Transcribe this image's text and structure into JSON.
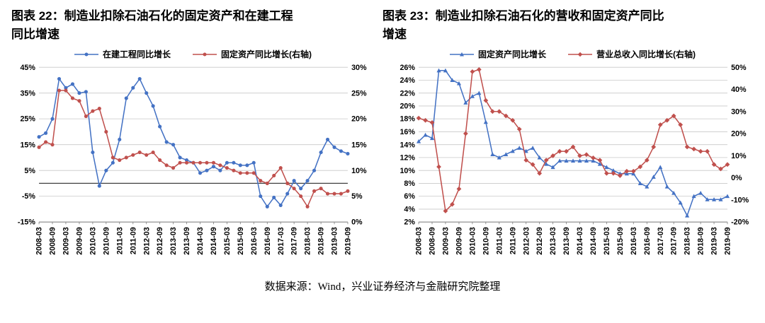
{
  "figure": {
    "titles": [
      {
        "line1": "图表 22：制造业扣除石油石化的固定资产和在建工程",
        "line2": "同比增速"
      },
      {
        "line1": "图表 23：制造业扣除石油石化的营收和固定资产同比",
        "line2": "增速"
      }
    ],
    "source": "数据来源：Wind，兴业证券经济与金融研究院整理"
  },
  "colors": {
    "series_blue": "#4472C4",
    "series_red": "#C0504D",
    "gridline": "#c8c8c8",
    "axis": "#7f7f7f"
  },
  "chart_data": [
    {
      "type": "line",
      "title": "制造业扣除石油石化的固定资产和在建工程同比增速",
      "x_labels": [
        "2008-03",
        "2008-06",
        "2008-09",
        "2008-12",
        "2009-03",
        "2009-06",
        "2009-09",
        "2009-12",
        "2010-03",
        "2010-06",
        "2010-09",
        "2010-12",
        "2011-03",
        "2011-06",
        "2011-09",
        "2011-12",
        "2012-03",
        "2012-06",
        "2012-09",
        "2012-12",
        "2013-03",
        "2013-06",
        "2013-09",
        "2013-12",
        "2014-03",
        "2014-06",
        "2014-09",
        "2014-12",
        "2015-03",
        "2015-06",
        "2015-09",
        "2015-12",
        "2016-03",
        "2016-06",
        "2016-09",
        "2016-12",
        "2017-03",
        "2017-06",
        "2017-09",
        "2017-12",
        "2018-03",
        "2018-06",
        "2018-09",
        "2018-12",
        "2019-03",
        "2019-06",
        "2019-09"
      ],
      "x_tick_every": 2,
      "left_axis": {
        "min": -15,
        "max": 45,
        "step": 10,
        "unit": "%"
      },
      "right_axis": {
        "min": 0,
        "max": 30,
        "step": 5,
        "unit": "%"
      },
      "zero_line": 0,
      "gridlines": true,
      "legend_position": "top",
      "series": [
        {
          "name": "在建工程同比增长",
          "axis": "left",
          "color": "#4472C4",
          "marker": "circle",
          "values": [
            18,
            19.5,
            25,
            40.5,
            37,
            38.5,
            35,
            35.5,
            12,
            -1,
            5,
            8,
            17,
            33,
            37,
            40.5,
            35,
            30,
            22,
            16,
            15,
            10,
            9,
            8,
            4,
            5,
            6.5,
            5,
            8,
            8,
            7,
            7,
            8,
            -5,
            -9,
            -5.5,
            -8.5,
            -4,
            1,
            -2,
            1,
            5,
            12,
            17,
            14,
            12.5,
            11.5
          ]
        },
        {
          "name": "固定资产同比增长(右轴)",
          "axis": "right",
          "color": "#C0504D",
          "marker": "circle",
          "values": [
            14.5,
            15.5,
            15,
            25.5,
            25.5,
            24,
            23.5,
            20.5,
            21.5,
            22,
            17.5,
            12.5,
            12,
            12.5,
            13,
            13.5,
            13,
            13.5,
            12,
            11,
            10.5,
            11.5,
            11.5,
            11.5,
            11.5,
            11.5,
            11.5,
            11,
            10.5,
            10,
            9.5,
            9.5,
            9.5,
            8,
            7.5,
            9,
            10.5,
            7.5,
            6.5,
            5,
            3,
            6,
            6.5,
            5.5,
            5.5,
            5.5,
            6
          ]
        }
      ]
    },
    {
      "type": "line",
      "title": "制造业扣除石油石化的营收和固定资产同比增速",
      "x_labels": [
        "2008-03",
        "2008-06",
        "2008-09",
        "2008-12",
        "2009-03",
        "2009-06",
        "2009-09",
        "2009-12",
        "2010-03",
        "2010-06",
        "2010-09",
        "2010-12",
        "2011-03",
        "2011-06",
        "2011-09",
        "2011-12",
        "2012-03",
        "2012-06",
        "2012-09",
        "2012-12",
        "2013-03",
        "2013-06",
        "2013-09",
        "2013-12",
        "2014-03",
        "2014-06",
        "2014-09",
        "2014-12",
        "2015-03",
        "2015-06",
        "2015-09",
        "2015-12",
        "2016-03",
        "2016-06",
        "2016-09",
        "2016-12",
        "2017-03",
        "2017-06",
        "2017-09",
        "2017-12",
        "2018-03",
        "2018-06",
        "2018-09",
        "2018-12",
        "2019-03",
        "2019-06",
        "2019-09"
      ],
      "x_tick_every": 2,
      "left_axis": {
        "min": 2,
        "max": 26,
        "step": 2,
        "unit": "%"
      },
      "right_axis": {
        "min": -20,
        "max": 50,
        "step": 10,
        "unit": "%"
      },
      "gridlines": true,
      "legend_position": "top",
      "series": [
        {
          "name": "固定资产同比增长",
          "axis": "left",
          "color": "#4472C4",
          "marker": "triangle",
          "values": [
            14.5,
            15.5,
            15,
            25.5,
            25.5,
            24,
            23.5,
            20.5,
            21.5,
            22,
            17.5,
            12.5,
            12,
            12.5,
            13,
            13.5,
            13,
            13.5,
            12,
            11,
            10.5,
            11.5,
            11.5,
            11.5,
            11.5,
            11.5,
            11.5,
            11,
            10.5,
            10,
            9.5,
            9.5,
            9.5,
            8,
            7.5,
            9,
            10.5,
            7.5,
            6.5,
            5,
            3,
            6,
            6.5,
            5.5,
            5.5,
            5.5,
            6
          ]
        },
        {
          "name": "营业总收入同比增长(右轴)",
          "axis": "right",
          "color": "#C0504D",
          "marker": "diamond",
          "values": [
            27,
            26,
            25,
            5,
            -15,
            -12,
            -5,
            20,
            48,
            49,
            35,
            30,
            30,
            28,
            26,
            22,
            8,
            6,
            2,
            8,
            10,
            12,
            12,
            14,
            10,
            10.5,
            9,
            8,
            2,
            2,
            1,
            3,
            3,
            5,
            8,
            14,
            24,
            26,
            28,
            24,
            14,
            13,
            12,
            12,
            6,
            4,
            6
          ]
        }
      ]
    }
  ]
}
